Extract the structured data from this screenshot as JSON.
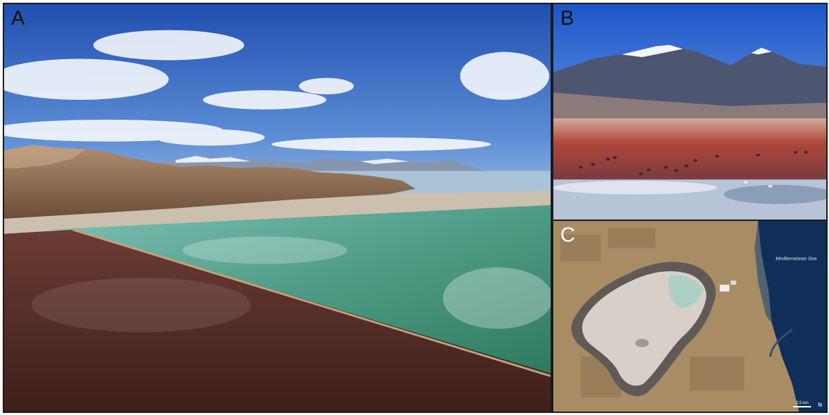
{
  "panels": {
    "a": {
      "label": "A"
    },
    "b": {
      "label": "B"
    },
    "c": {
      "label": "C",
      "sea_label": "Mediterranean Sea",
      "scale_label": "2.5 km",
      "north_symbol": "N"
    }
  },
  "colors": {
    "sky": "#3a6fc4",
    "turquoise_water": "#5faa9a",
    "red_water": "#5a2e28",
    "red_lagoon": "#b0473a",
    "desert": "#a88c64",
    "salt_flat": "#d8cfc8",
    "sea": "#0f2f5a"
  }
}
